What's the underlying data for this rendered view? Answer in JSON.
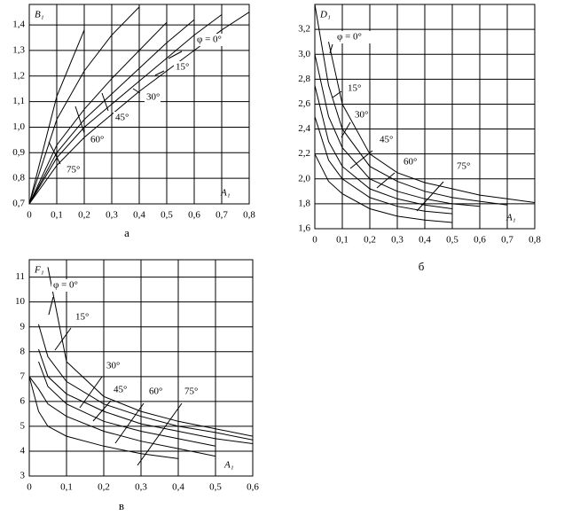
{
  "chart_data": [
    {
      "type": "line",
      "panel_label": "а",
      "ylabel": "B₁",
      "xlabel": "A₁",
      "x": [
        0,
        0.1,
        0.2,
        0.3,
        0.4,
        0.5,
        0.6,
        0.7,
        0.8
      ],
      "series": [
        {
          "name": "φ = 0°",
          "color": "#000000",
          "values": [
            0.7,
            0.85,
            0.96,
            1.05,
            1.14,
            1.22,
            1.3,
            1.38,
            1.45
          ]
        },
        {
          "name": "15°",
          "color": "#000000",
          "values": [
            0.7,
            0.88,
            1.0,
            1.09,
            1.18,
            1.27,
            1.36,
            1.44,
            null
          ]
        },
        {
          "name": "30°",
          "color": "#000000",
          "values": [
            0.7,
            0.9,
            1.03,
            1.13,
            1.23,
            1.33,
            1.42,
            null,
            null
          ]
        },
        {
          "name": "45°",
          "color": "#000000",
          "values": [
            0.7,
            0.93,
            1.07,
            1.19,
            1.3,
            1.41,
            null,
            null,
            null
          ]
        },
        {
          "name": "60°",
          "color": "#000000",
          "values": [
            0.7,
            1.03,
            1.22,
            1.36,
            1.47,
            null,
            null,
            null,
            null
          ]
        },
        {
          "name": "75°",
          "color": "#000000",
          "values": [
            0.7,
            1.12,
            1.38,
            null,
            null,
            null,
            null,
            null,
            null
          ]
        }
      ],
      "xlim": [
        0,
        0.8
      ],
      "ylim": [
        0.7,
        1.48
      ],
      "xticks": [
        0,
        {
          "value": 0.1,
          "label": "0,1"
        },
        {
          "value": 0.2,
          "label": "0,2"
        },
        {
          "value": 0.3,
          "label": "0,3"
        },
        {
          "value": 0.4,
          "label": "0,4"
        },
        {
          "value": 0.5,
          "label": "0,5"
        },
        {
          "value": 0.6,
          "label": "0,6"
        },
        {
          "value": 0.7,
          "label": "0,7"
        },
        {
          "value": 0.8,
          "label": "0,8"
        }
      ],
      "yticks": [
        {
          "value": 0.7,
          "label": "0,7"
        },
        {
          "value": 0.8,
          "label": "0,8"
        },
        {
          "value": 0.9,
          "label": "0,9"
        },
        {
          "value": 1.0,
          "label": "1,0"
        },
        {
          "value": 1.1,
          "label": "1,1"
        },
        {
          "value": 1.2,
          "label": "1,2"
        },
        {
          "value": 1.3,
          "label": "1,3"
        },
        {
          "value": 1.4,
          "label": "1,4"
        }
      ],
      "grid": true
    },
    {
      "type": "line",
      "panel_label": "б",
      "ylabel": "D₁",
      "xlabel": "A₁",
      "x": [
        0,
        0.05,
        0.1,
        0.2,
        0.3,
        0.4,
        0.5,
        0.6,
        0.7,
        0.8
      ],
      "series": [
        {
          "name": "φ = 0°",
          "color": "#000000",
          "values": [
            null,
            3.1,
            2.6,
            2.2,
            2.05,
            1.97,
            1.92,
            1.87,
            1.84,
            1.81
          ]
        },
        {
          "name": "15°",
          "color": "#000000",
          "values": [
            3.4,
            2.75,
            2.4,
            2.1,
            1.98,
            1.9,
            1.85,
            1.82,
            1.79,
            null
          ]
        },
        {
          "name": "30°",
          "color": "#000000",
          "values": [
            3.0,
            2.5,
            2.25,
            2.0,
            1.9,
            1.84,
            1.8,
            1.78,
            null,
            null
          ]
        },
        {
          "name": "45°",
          "color": "#000000",
          "values": [
            2.75,
            2.3,
            2.1,
            1.92,
            1.84,
            1.79,
            1.76,
            null,
            null,
            null
          ]
        },
        {
          "name": "60°",
          "color": "#000000",
          "values": [
            2.5,
            2.15,
            2.0,
            1.85,
            1.78,
            1.74,
            1.72,
            null,
            null,
            null
          ]
        },
        {
          "name": "75°",
          "color": "#000000",
          "values": [
            2.2,
            1.98,
            1.88,
            1.76,
            1.7,
            1.67,
            1.65,
            null,
            null,
            null
          ]
        }
      ],
      "xlim": [
        0,
        0.8
      ],
      "ylim": [
        1.6,
        3.4
      ],
      "xticks": [
        0,
        {
          "value": 0.1,
          "label": "0,1"
        },
        {
          "value": 0.2,
          "label": "0,2"
        },
        {
          "value": 0.3,
          "label": "0,3"
        },
        {
          "value": 0.4,
          "label": "0,4"
        },
        {
          "value": 0.5,
          "label": "0,5"
        },
        {
          "value": 0.6,
          "label": "0,6"
        },
        {
          "value": 0.7,
          "label": "0,7"
        },
        {
          "value": 0.8,
          "label": "0,8"
        }
      ],
      "yticks": [
        {
          "value": 1.6,
          "label": "1,6"
        },
        {
          "value": 1.8,
          "label": "1,8"
        },
        {
          "value": 2.0,
          "label": "2,0"
        },
        {
          "value": 2.2,
          "label": "2,2"
        },
        {
          "value": 2.4,
          "label": "2,4"
        },
        {
          "value": 2.6,
          "label": "2,6"
        },
        {
          "value": 2.8,
          "label": "2,8"
        },
        {
          "value": 3.0,
          "label": "3,0"
        },
        {
          "value": 3.2,
          "label": "3,2"
        }
      ],
      "grid": true
    },
    {
      "type": "line",
      "panel_label": "в",
      "ylabel": "F₁",
      "xlabel": "A₁",
      "x": [
        0,
        0.025,
        0.05,
        0.1,
        0.2,
        0.3,
        0.4,
        0.5,
        0.6
      ],
      "series": [
        {
          "name": "φ = 0°",
          "color": "#000000",
          "values": [
            null,
            null,
            11.4,
            7.6,
            6.2,
            5.6,
            5.2,
            4.9,
            4.6
          ]
        },
        {
          "name": "15°",
          "color": "#000000",
          "values": [
            null,
            9.1,
            7.8,
            6.8,
            5.9,
            5.4,
            5.0,
            4.75,
            4.45
          ]
        },
        {
          "name": "30°",
          "color": "#000000",
          "values": [
            null,
            8.1,
            7.0,
            6.3,
            5.6,
            5.1,
            4.8,
            4.5,
            4.3
          ]
        },
        {
          "name": "45°",
          "color": "#000000",
          "values": [
            null,
            7.6,
            6.6,
            5.9,
            5.2,
            4.8,
            4.5,
            4.2,
            null
          ]
        },
        {
          "name": "60°",
          "color": "#000000",
          "values": [
            7.0,
            6.5,
            5.9,
            5.4,
            4.8,
            4.4,
            4.1,
            3.8,
            null
          ]
        },
        {
          "name": "75°",
          "color": "#000000",
          "values": [
            7.0,
            5.6,
            5.0,
            4.6,
            4.2,
            3.9,
            3.7,
            null,
            null
          ]
        }
      ],
      "xlim": [
        0,
        0.6
      ],
      "ylim": [
        3,
        11.7
      ],
      "xticks": [
        0,
        {
          "value": 0.1,
          "label": "0,1"
        },
        {
          "value": 0.2,
          "label": "0,2"
        },
        {
          "value": 0.3,
          "label": "0,3"
        },
        {
          "value": 0.4,
          "label": "0,4"
        },
        {
          "value": 0.5,
          "label": "0,5"
        },
        {
          "value": 0.6,
          "label": "0,6"
        }
      ],
      "yticks": [
        3,
        4,
        5,
        6,
        7,
        8,
        9,
        10,
        11
      ],
      "grid": true
    }
  ]
}
